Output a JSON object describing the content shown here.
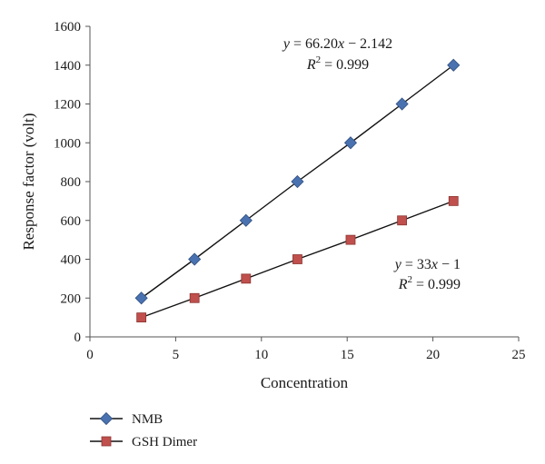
{
  "chart_data": {
    "type": "scatter",
    "xlabel": "Concentration",
    "ylabel": "Response factor (volt)",
    "xlim": [
      0,
      25
    ],
    "ylim": [
      0,
      1600
    ],
    "xticks": [
      0,
      5,
      10,
      15,
      20,
      25
    ],
    "yticks": [
      0,
      200,
      400,
      600,
      800,
      1000,
      1200,
      1400,
      1600
    ],
    "grid": false,
    "legend_position": "bottom-left",
    "series": [
      {
        "name": "NMB",
        "marker": "diamond",
        "color": "#4a72b0",
        "x": [
          3,
          6.1,
          9.1,
          12.1,
          15.2,
          18.2,
          21.2
        ],
        "y": [
          200,
          400,
          600,
          800,
          1000,
          1200,
          1400
        ],
        "trendline": true,
        "equation": "y = 66.20x − 2.142",
        "r2": "R2 = 0.999"
      },
      {
        "name": "GSH Dimer",
        "marker": "square",
        "color": "#c0504d",
        "x": [
          3,
          6.1,
          9.1,
          12.1,
          15.2,
          18.2,
          21.2
        ],
        "y": [
          100,
          200,
          300,
          400,
          500,
          600,
          700
        ],
        "trendline": true,
        "equation": "y = 33x − 1",
        "r2": "R2 = 0.999"
      }
    ]
  }
}
